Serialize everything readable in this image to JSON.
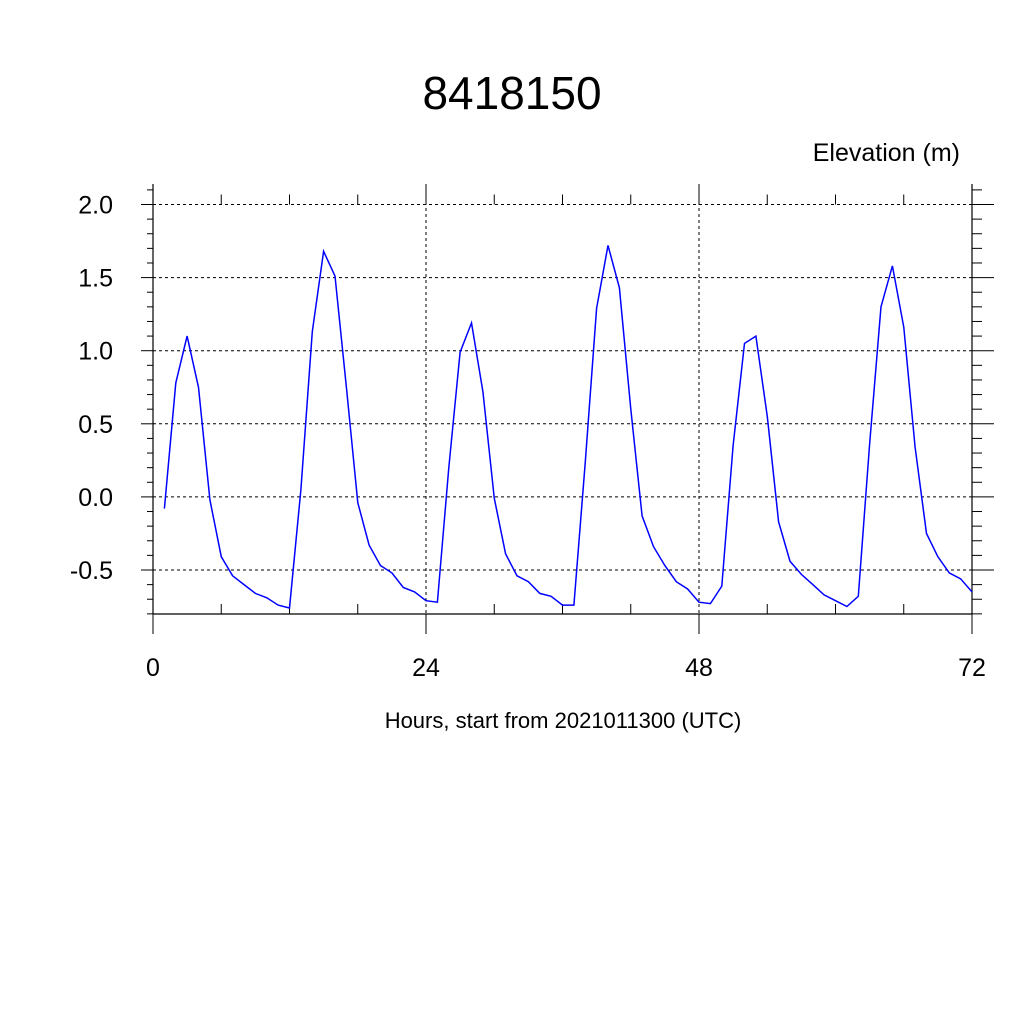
{
  "chart_data": {
    "type": "line",
    "title": "8418150",
    "ylabel": "Elevation (m)",
    "xlabel": "Hours, start from 2021011300 (UTC)",
    "xlim": [
      0,
      72
    ],
    "ylim": [
      -0.8,
      2.15
    ],
    "x_ticks": [
      0,
      24,
      48,
      72
    ],
    "x_tick_labels": [
      "0",
      "24",
      "48",
      "72"
    ],
    "y_ticks": [
      -0.5,
      0.0,
      0.5,
      1.0,
      1.5,
      2.0
    ],
    "y_tick_labels": [
      "-0.5",
      "0.0",
      "0.5",
      "1.0",
      "1.5",
      "2.0"
    ],
    "grid": true,
    "line_color": "#0000ff",
    "series": [
      {
        "x": [
          1,
          2,
          3,
          4,
          5,
          6,
          7,
          8,
          9,
          10,
          11,
          12,
          13,
          14,
          15,
          16,
          17,
          18,
          19,
          20,
          21,
          22,
          23,
          24,
          25,
          26,
          27,
          28,
          29,
          30,
          31,
          32,
          33,
          34,
          35,
          36,
          37,
          38,
          39,
          40,
          41,
          42,
          43,
          44,
          45,
          46,
          47,
          48,
          49,
          50,
          51,
          52,
          53,
          54,
          55,
          56,
          57,
          58,
          59,
          60,
          61,
          62,
          63,
          64,
          65,
          66,
          67,
          68,
          69,
          70,
          71,
          72
        ],
        "values": [
          -0.08,
          0.78,
          1.1,
          0.75,
          -0.02,
          -0.41,
          -0.54,
          -0.6,
          -0.66,
          -0.69,
          -0.74,
          -0.76,
          0.05,
          1.13,
          1.68,
          1.51,
          0.75,
          -0.04,
          -0.33,
          -0.47,
          -0.52,
          -0.62,
          -0.65,
          -0.71,
          -0.72,
          0.2,
          0.99,
          1.19,
          0.72,
          -0.01,
          -0.39,
          -0.54,
          -0.58,
          -0.66,
          -0.68,
          -0.74,
          -0.74,
          0.24,
          1.29,
          1.72,
          1.43,
          0.6,
          -0.13,
          -0.34,
          -0.47,
          -0.58,
          -0.63,
          -0.72,
          -0.73,
          -0.61,
          0.35,
          1.05,
          1.1,
          0.55,
          -0.17,
          -0.44,
          -0.53,
          -0.6,
          -0.67,
          -0.71,
          -0.75,
          -0.68,
          0.36,
          1.3,
          1.58,
          1.16,
          0.34,
          -0.25,
          -0.41,
          -0.52,
          -0.56,
          -0.65
        ]
      }
    ]
  }
}
